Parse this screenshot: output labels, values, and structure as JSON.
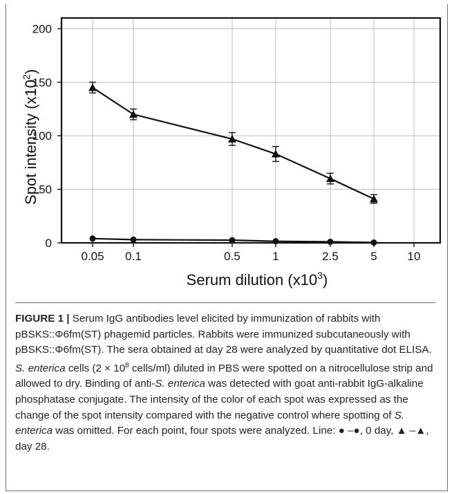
{
  "chart_data": {
    "type": "line",
    "title": "",
    "xlabel": "Serum dilution (x10",
    "xlabel_exp": "3",
    "xlabel_close": ")",
    "ylabel": "Spot intensity (x10",
    "ylabel_exp": "2",
    "ylabel_close": ")",
    "x_ticks": [
      "0.05",
      "0.1",
      "0.5",
      "1",
      "2.5",
      "5",
      "10"
    ],
    "y_ticks": [
      0,
      50,
      100,
      150,
      200
    ],
    "ylim": [
      0,
      210
    ],
    "grid": true,
    "series": [
      {
        "name": "day 28",
        "marker": "triangle",
        "x": [
          "0.05",
          "0.1",
          "0.5",
          "1",
          "2.5",
          "5"
        ],
        "values": [
          145,
          120,
          97,
          83,
          60,
          41
        ],
        "error": [
          5,
          5,
          6,
          7,
          5,
          4
        ]
      },
      {
        "name": "0 day",
        "marker": "circle",
        "x": [
          "0.05",
          "0.1",
          "0.5",
          "1",
          "2.5",
          "5"
        ],
        "values": [
          4,
          3,
          2.5,
          1.5,
          1,
          0.3
        ],
        "error": [
          0,
          0,
          0,
          0,
          0,
          0
        ]
      }
    ]
  },
  "caption": {
    "label": "FIGURE 1 |",
    "s1": " Serum IgG antibodies level elicited by immunization of rabbits with pBSKS::Φ6fm(ST) phagemid particles. Rabbits were immunized subcutaneously with pBSKS::Φ6fm(ST). The sera obtained at day 28 were analyzed by quantitative dot ELISA. ",
    "org1": "S. enterica",
    "s2": " cells (2 × 10",
    "exp": "8",
    "s3": " cells/ml) diluted in PBS were spotted on a nitrocellulose strip and allowed to dry. Binding of anti-",
    "org2": "S. enterica",
    "s4": " was detected with goat anti-rabbit IgG-alkaline phosphatase conjugate. The intensity of the color of each spot was expressed as the change of the spot intensity compared with the negative control where spotting of ",
    "org3": "S. enterica",
    "s5": " was omitted. For each point, four spots were analyzed. Line: ● –●, 0 day, ▲ –▲, day 28."
  }
}
